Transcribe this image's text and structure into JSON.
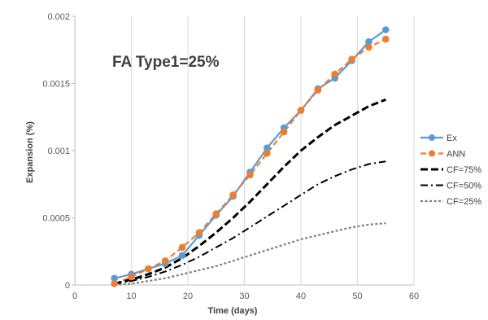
{
  "chart_data": {
    "type": "line",
    "title": "",
    "annotation": "FA Type1=25%",
    "xlabel": "Time (days)",
    "ylabel": "Expansion (%)",
    "xlim": [
      0,
      60
    ],
    "ylim": [
      0,
      0.002
    ],
    "x_ticks": [
      0,
      10,
      20,
      30,
      40,
      50,
      60
    ],
    "x_tick_labels": [
      "0",
      "10",
      "20",
      "30",
      "40",
      "50",
      "60"
    ],
    "y_ticks": [
      0,
      0.0005,
      0.001,
      0.0015,
      0.002
    ],
    "y_tick_labels": [
      "0",
      "0.0005",
      "0.001",
      "0.0015",
      "0.002"
    ],
    "grid": "vertical",
    "legend_position": "right",
    "series": [
      {
        "name": "Ex",
        "color": "#5B9BD5",
        "style": "solid",
        "markers": true,
        "x": [
          7,
          10,
          13,
          16,
          19,
          22,
          25,
          28,
          31,
          34,
          37,
          40,
          43,
          46,
          49,
          52,
          55
        ],
        "y": [
          5e-05,
          8e-05,
          0.00012,
          0.00016,
          0.00022,
          0.00037,
          0.00052,
          0.00066,
          0.00084,
          0.00102,
          0.00117,
          0.0013,
          0.00146,
          0.00154,
          0.00167,
          0.00181,
          0.0019
        ]
      },
      {
        "name": "ANN",
        "color": "#ED7D31",
        "style": "dashed",
        "markers": true,
        "x": [
          7,
          10,
          13,
          16,
          19,
          22,
          25,
          28,
          31,
          34,
          37,
          40,
          43,
          46,
          49,
          52,
          55
        ],
        "y": [
          1e-05,
          6e-05,
          0.00012,
          0.00018,
          0.00028,
          0.00039,
          0.00053,
          0.00067,
          0.00082,
          0.00098,
          0.00114,
          0.0013,
          0.00145,
          0.00157,
          0.00168,
          0.00177,
          0.00183
        ]
      },
      {
        "name": "CF=75%",
        "color": "#000000",
        "style": "longdash",
        "markers": false,
        "x": [
          7,
          10,
          13,
          16,
          19,
          22,
          25,
          28,
          31,
          34,
          37,
          40,
          43,
          46,
          49,
          52,
          55
        ],
        "y": [
          1e-05,
          4e-05,
          8e-05,
          0.00013,
          0.0002,
          0.00029,
          0.00039,
          0.0005,
          0.00062,
          0.00075,
          0.00088,
          0.001,
          0.0011,
          0.00119,
          0.00126,
          0.00133,
          0.00138
        ]
      },
      {
        "name": "CF=50%",
        "color": "#000000",
        "style": "dashdot",
        "markers": false,
        "x": [
          7,
          10,
          13,
          16,
          19,
          22,
          25,
          28,
          31,
          34,
          37,
          40,
          43,
          46,
          49,
          52,
          55
        ],
        "y": [
          1e-05,
          3e-05,
          6e-05,
          0.0001,
          0.00015,
          0.00021,
          0.00028,
          0.00035,
          0.00043,
          0.00051,
          0.00059,
          0.00067,
          0.00075,
          0.00081,
          0.00086,
          0.0009,
          0.00092
        ]
      },
      {
        "name": "CF=25%",
        "color": "#7F7F7F",
        "style": "dotted",
        "markers": false,
        "x": [
          7,
          10,
          13,
          16,
          19,
          22,
          25,
          28,
          31,
          34,
          37,
          40,
          43,
          46,
          49,
          52,
          55
        ],
        "y": [
          0.0,
          1e-05,
          3e-05,
          5e-05,
          8e-05,
          0.00011,
          0.00014,
          0.00018,
          0.00022,
          0.00026,
          0.0003,
          0.00034,
          0.00037,
          0.0004,
          0.00043,
          0.00045,
          0.00046
        ]
      }
    ]
  }
}
